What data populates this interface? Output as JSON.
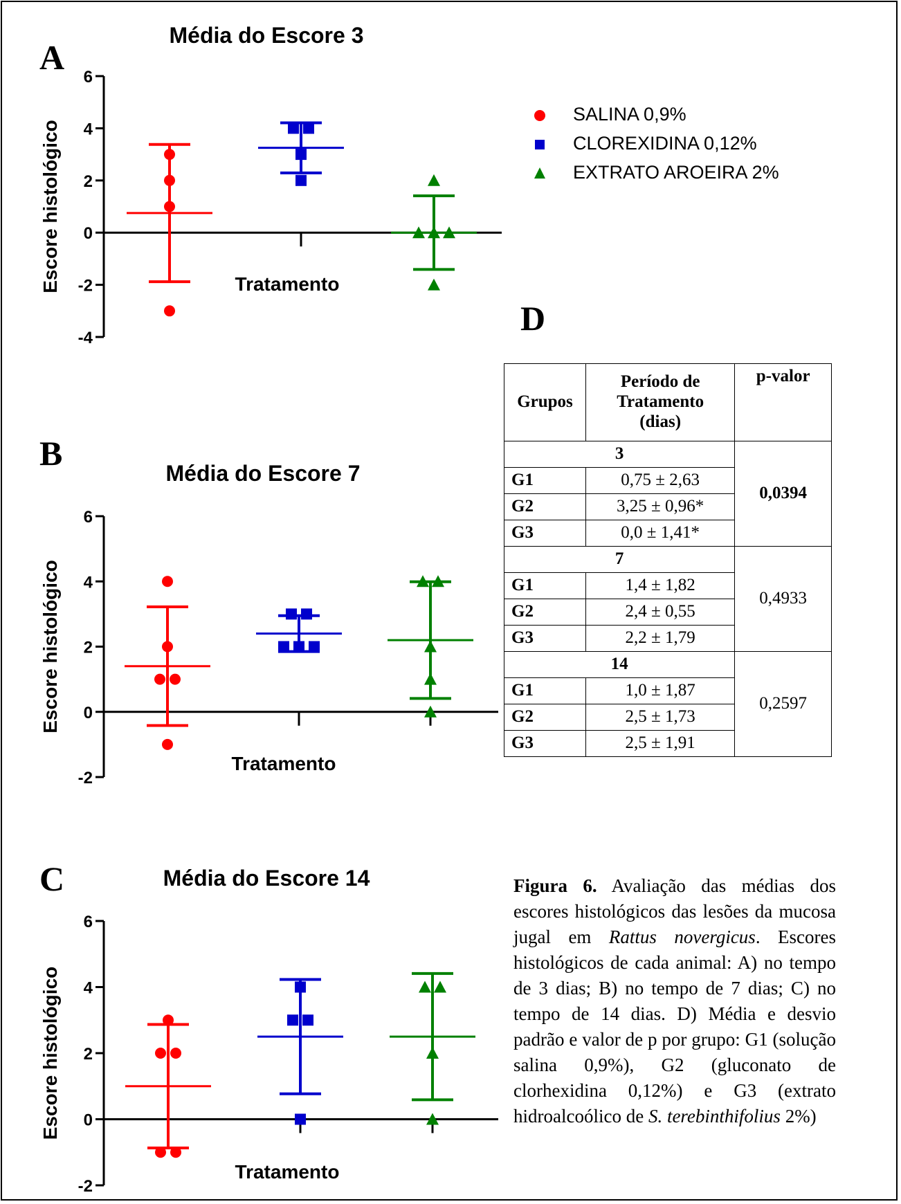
{
  "colors": {
    "salina": "#ff0000",
    "clorexidina": "#0000cc",
    "aroeira": "#008000"
  },
  "legend": {
    "items": [
      {
        "label": "SALINA 0,9%",
        "marker": "circle",
        "color": "#ff0000"
      },
      {
        "label": "CLOREXIDINA 0,12%",
        "marker": "square",
        "color": "#0000cc"
      },
      {
        "label": "EXTRATO AROEIRA 2%",
        "marker": "triangle",
        "color": "#008000"
      }
    ]
  },
  "panels": {
    "a": "A",
    "b": "B",
    "c": "C",
    "d": "D"
  },
  "chart_data": [
    {
      "type": "scatter",
      "title": "Média do Escore 3",
      "xlabel": "Tratamento",
      "ylabel": "Escore histológico",
      "ylim": [
        -4,
        6
      ],
      "yticks": [
        "6",
        "4",
        "2",
        "0",
        "-2",
        "-4"
      ],
      "series": [
        {
          "name": "SALINA 0,9%",
          "points": [
            3,
            2,
            1,
            -3
          ],
          "mean": 0.75,
          "sd": 2.63
        },
        {
          "name": "CLOREXIDINA 0,12%",
          "points": [
            4,
            4,
            3,
            2
          ],
          "mean": 3.25,
          "sd": 0.96
        },
        {
          "name": "EXTRATO AROEIRA 2%",
          "points": [
            2,
            0,
            0,
            0,
            -2
          ],
          "mean": 0.0,
          "sd": 1.41
        }
      ]
    },
    {
      "type": "scatter",
      "title": "Média do Escore 7",
      "xlabel": "Tratamento",
      "ylabel": "Escore histológico",
      "ylim": [
        -2,
        6
      ],
      "yticks": [
        "6",
        "4",
        "2",
        "0",
        "-2"
      ],
      "series": [
        {
          "name": "SALINA 0,9%",
          "points": [
            4,
            2,
            1,
            1,
            -1
          ],
          "mean": 1.4,
          "sd": 1.82
        },
        {
          "name": "CLOREXIDINA 0,12%",
          "points": [
            3,
            3,
            2,
            2,
            2
          ],
          "mean": 2.4,
          "sd": 0.55
        },
        {
          "name": "EXTRATO AROEIRA 2%",
          "points": [
            4,
            4,
            2,
            1,
            0
          ],
          "mean": 2.2,
          "sd": 1.79
        }
      ]
    },
    {
      "type": "scatter",
      "title": "Média do Escore 14",
      "xlabel": "Tratamento",
      "ylabel": "Escore histológico",
      "ylim": [
        -2,
        6
      ],
      "yticks": [
        "6",
        "4",
        "2",
        "0",
        "-2"
      ],
      "series": [
        {
          "name": "SALINA 0,9%",
          "points": [
            3,
            2,
            2,
            -1,
            -1
          ],
          "mean": 1.0,
          "sd": 1.87
        },
        {
          "name": "CLOREXIDINA 0,12%",
          "points": [
            4,
            3,
            3,
            0
          ],
          "mean": 2.5,
          "sd": 1.73
        },
        {
          "name": "EXTRATO AROEIRA 2%",
          "points": [
            4,
            4,
            2,
            0
          ],
          "mean": 2.5,
          "sd": 1.91
        }
      ]
    }
  ],
  "table": {
    "headers": [
      "Grupos",
      "Período de Tratamento (dias)",
      "p-valor"
    ],
    "header_lines": [
      "Período de",
      "Tratamento",
      "(dias)"
    ],
    "periods": [
      {
        "period": "3",
        "p": "0,0394",
        "p_bold": true,
        "rows": [
          {
            "group": "G1",
            "value": "0,75 ± 2,63"
          },
          {
            "group": "G2",
            "value": "3,25 ± 0,96*"
          },
          {
            "group": "G3",
            "value": "0,0 ± 1,41*"
          }
        ]
      },
      {
        "period": "7",
        "p": "0,4933",
        "p_bold": false,
        "rows": [
          {
            "group": "G1",
            "value": "1,4 ± 1,82"
          },
          {
            "group": "G2",
            "value": "2,4 ± 0,55"
          },
          {
            "group": "G3",
            "value": "2,2 ± 1,79"
          }
        ]
      },
      {
        "period": "14",
        "p": "0,2597",
        "p_bold": false,
        "rows": [
          {
            "group": "G1",
            "value": "1,0 ± 1,87"
          },
          {
            "group": "G2",
            "value": "2,5 ± 1,73"
          },
          {
            "group": "G3",
            "value": "2,5 ± 1,91"
          }
        ]
      }
    ]
  },
  "caption": {
    "label": "Figura 6.",
    "t1": " Avaliação das médias dos escores histológicos das lesões da mucosa jugal em ",
    "species": "Rattus novergicus",
    "t2": ". Escores histológicos de cada animal: A) no tempo de 3 dias; B) no tempo de 7 dias; C) no tempo de 14 dias. D) Média e desvio padrão e valor de p por grupo: G1 (solução salina 0,9%), G2 (gluconato de clorhexidina 0,12%) e G3 (extrato hidroalcoólico de ",
    "species2": "S. terebinthifolius",
    "t3": " 2%)"
  }
}
